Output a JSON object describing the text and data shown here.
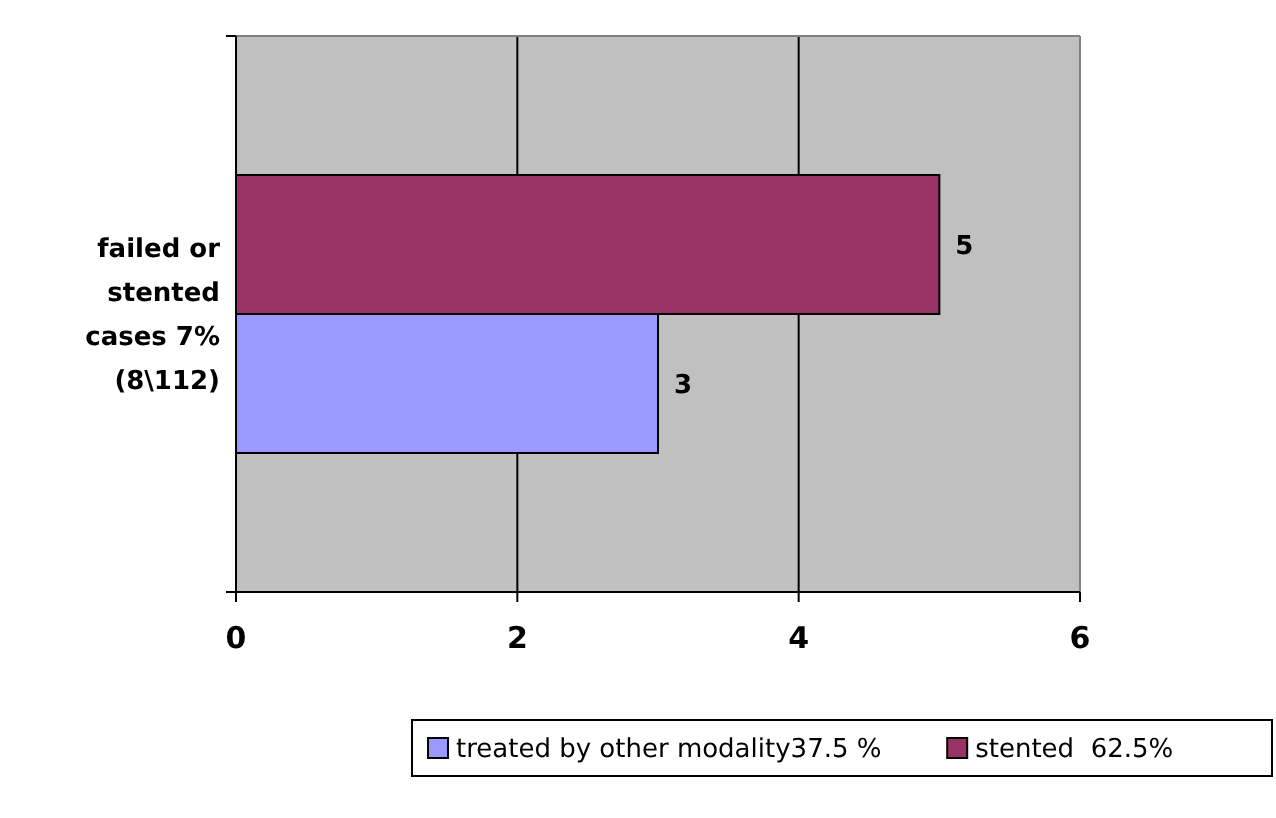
{
  "chart_data": {
    "type": "bar",
    "orientation": "horizontal",
    "categories": [
      "failed or stented cases 7% (8\\112)"
    ],
    "series": [
      {
        "name": "treated by other modality37.5 %",
        "color": "#9999ff",
        "values": [
          3
        ]
      },
      {
        "name": "stented  62.5%",
        "color": "#993366",
        "values": [
          5
        ]
      }
    ],
    "xlim": [
      0,
      6
    ],
    "xticks": [
      0,
      2,
      4,
      6
    ],
    "grid": "x",
    "legend": "bottom",
    "data_labels": true
  }
}
